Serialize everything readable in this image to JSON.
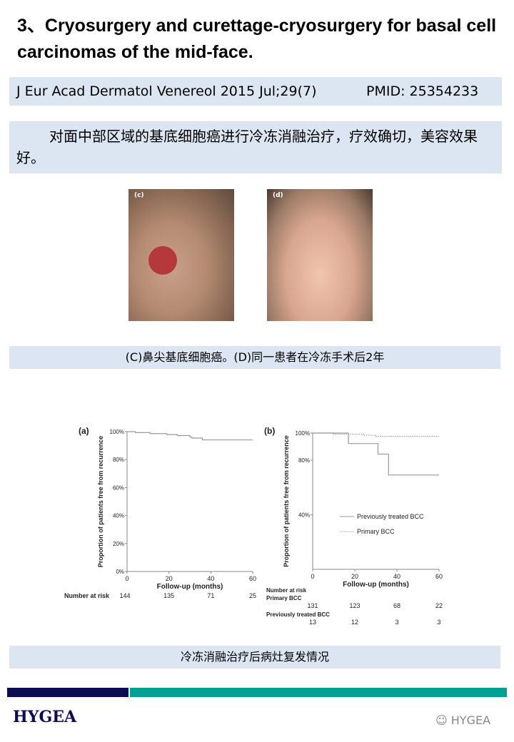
{
  "title": "3、Cryosurgery and curettage-cryosurgery for basal cell carcinomas of the mid-face.",
  "citation": {
    "journal": "J Eur Acad Dermatol Venereol 2015 Jul;29(7)",
    "pmid": "PMID: 25354233"
  },
  "summary": "对面中部区域的基底细胞癌进行冷冻消融治疗，疗效确切，美容效果好。",
  "photos": {
    "c_label": "(c)",
    "d_label": "(d)"
  },
  "photo_caption": "(C)鼻尖基底细胞癌。(D)同一患者在冷冻手术后2年",
  "chart_caption": "冷冻消融治疗后病灶复发情况",
  "footer": {
    "logo": "HYGEA",
    "watermark": "HYGEA"
  },
  "chart_data": [
    {
      "type": "line",
      "panel": "(a)",
      "xlabel": "Follow-up (months)",
      "ylabel": "Proportion of patients free from recurrence",
      "xlim": [
        0,
        60
      ],
      "ylim": [
        0,
        100
      ],
      "xticks": [
        "0",
        "20",
        "40",
        "60"
      ],
      "yticks": [
        "0%",
        "20%",
        "40%",
        "60%",
        "80%",
        "100%"
      ],
      "series": [
        {
          "style": "solid",
          "x": [
            0,
            4,
            4,
            11,
            11,
            19,
            19,
            24,
            24,
            30,
            30,
            31,
            31,
            36,
            36,
            60
          ],
          "y": [
            100,
            100,
            99.3,
            99.3,
            98.6,
            98.6,
            97.9,
            97.9,
            97.2,
            97.2,
            96.2,
            96.2,
            95.4,
            95.4,
            94.1,
            94.1
          ]
        }
      ],
      "risk_label": "Number at risk",
      "risk": [
        "144",
        "135",
        "71",
        "25"
      ]
    },
    {
      "type": "line",
      "panel": "(b)",
      "xlabel": "Follow-up (months)",
      "ylabel": "Proportion of patients free from recurrence",
      "xlim": [
        0,
        60
      ],
      "ylim": [
        0,
        100
      ],
      "xticks": [
        "0",
        "20",
        "40",
        "60"
      ],
      "yticks": [
        "40%",
        "80%",
        "100%"
      ],
      "series": [
        {
          "name": "Previously treated BCC",
          "style": "solid",
          "x": [
            0,
            17,
            17,
            31,
            31,
            36,
            36,
            60
          ],
          "y": [
            100,
            100,
            92.3,
            92.3,
            84.6,
            84.6,
            69.2,
            69.2
          ]
        },
        {
          "name": "Primary BCC",
          "style": "dotted",
          "x": [
            0,
            10,
            10,
            24,
            24,
            30,
            30,
            60
          ],
          "y": [
            100,
            100,
            99.2,
            99.2,
            98.4,
            98.4,
            97.6,
            97.6
          ]
        }
      ],
      "risk_label": "Number at risk",
      "risk_groups": [
        {
          "name": "Primary BCC",
          "values": [
            "131",
            "123",
            "68",
            "22"
          ]
        },
        {
          "name": "Previously treated BCC",
          "values": [
            "13",
            "12",
            "3",
            "3"
          ]
        }
      ]
    }
  ]
}
